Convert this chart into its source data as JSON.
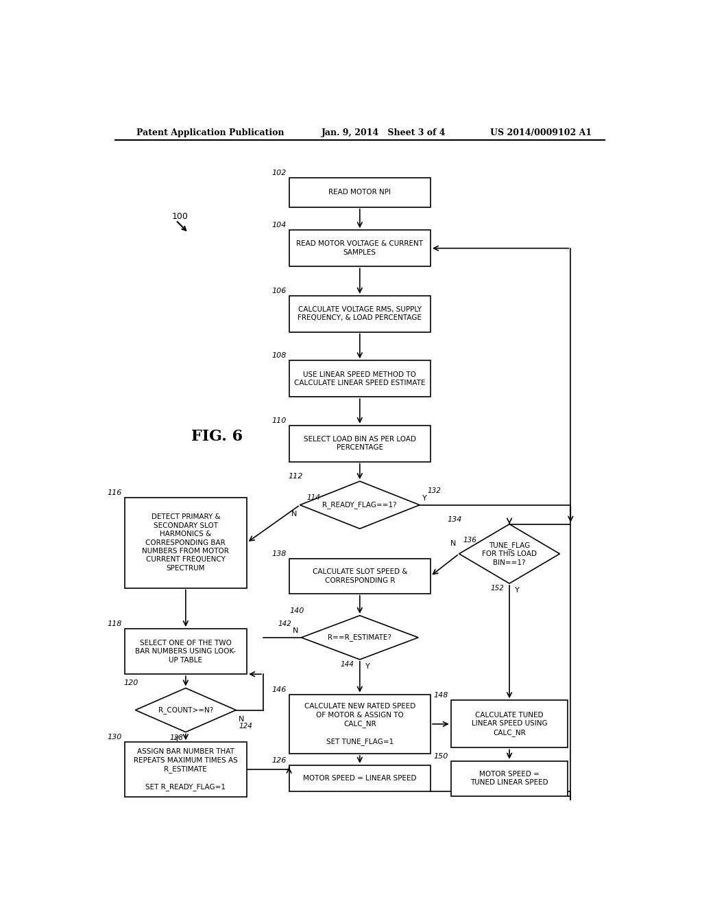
{
  "header_left": "Patent Application Publication",
  "header_mid": "Jan. 9, 2014   Sheet 3 of 4",
  "header_right": "US 2014/0009102 A1",
  "fig_label": "FIG. 6",
  "bg_color": "#ffffff",
  "font_size": 7.5
}
